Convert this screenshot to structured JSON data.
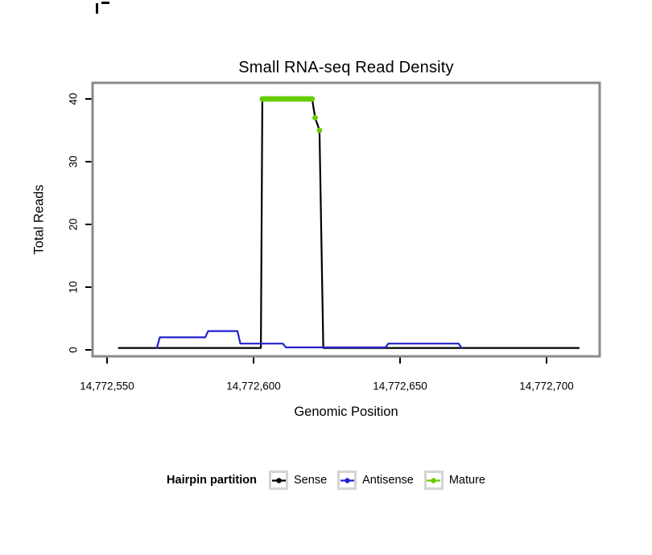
{
  "chart_data": {
    "type": "line",
    "title": "Small RNA-seq Read Density",
    "xlabel": "Genomic Position",
    "ylabel": "Total Reads",
    "xlim": [
      14772545,
      14772718
    ],
    "ylim": [
      0,
      41
    ],
    "grid": false,
    "panel_border_color": "#8a8a8a",
    "x_ticks": [
      {
        "value": 14772550,
        "label": "14,772,550"
      },
      {
        "value": 14772600,
        "label": "14,772,600"
      },
      {
        "value": 14772650,
        "label": "14,772,650"
      },
      {
        "value": 14772700,
        "label": "14,772,700"
      }
    ],
    "y_ticks": [
      {
        "value": 0,
        "label": "0"
      },
      {
        "value": 10,
        "label": "10"
      },
      {
        "value": 20,
        "label": "20"
      },
      {
        "value": 30,
        "label": "30"
      },
      {
        "value": 40,
        "label": "40"
      }
    ],
    "legend": {
      "title": "Hairpin partition",
      "position": "bottom",
      "entries": [
        {
          "label": "Sense",
          "color": "#000000"
        },
        {
          "label": "Antisense",
          "color": "#2222CC"
        },
        {
          "label": "Mature",
          "color": "#66CD00"
        }
      ]
    },
    "series": [
      {
        "name": "Sense",
        "type": "line",
        "color": "#000000",
        "stroke_width": 2.2,
        "points": [
          [
            14772554,
            0.3
          ],
          [
            14772602.5,
            0.3
          ],
          [
            14772603,
            40
          ],
          [
            14772620,
            40
          ],
          [
            14772621,
            37
          ],
          [
            14772622.5,
            35
          ],
          [
            14772623.8,
            0.3
          ],
          [
            14772711,
            0.3
          ]
        ]
      },
      {
        "name": "Antisense",
        "type": "line",
        "color": "#2222CC",
        "stroke_width": 2.2,
        "points": [
          [
            14772567,
            0.3
          ],
          [
            14772568,
            2
          ],
          [
            14772583.5,
            2
          ],
          [
            14772584.5,
            3
          ],
          [
            14772594.5,
            3
          ],
          [
            14772595.5,
            1
          ],
          [
            14772610,
            1
          ],
          [
            14772611,
            0.4
          ],
          [
            14772645,
            0.4
          ],
          [
            14772646,
            1
          ],
          [
            14772670,
            1
          ],
          [
            14772671,
            0.3
          ]
        ]
      },
      {
        "name": "Mature",
        "type": "points",
        "color": "#66CD00",
        "point_radius": 3.4,
        "run_width": 6.5,
        "points": [
          [
            14772603,
            40
          ],
          [
            14772604,
            40
          ],
          [
            14772605,
            40
          ],
          [
            14772606,
            40
          ],
          [
            14772607,
            40
          ],
          [
            14772608,
            40
          ],
          [
            14772609,
            40
          ],
          [
            14772610,
            40
          ],
          [
            14772611,
            40
          ],
          [
            14772612,
            40
          ],
          [
            14772613,
            40
          ],
          [
            14772614,
            40
          ],
          [
            14772615,
            40
          ],
          [
            14772616,
            40
          ],
          [
            14772617,
            40
          ],
          [
            14772618,
            40
          ],
          [
            14772619,
            40
          ],
          [
            14772620,
            40
          ],
          [
            14772621,
            37
          ],
          [
            14772622.5,
            35
          ]
        ]
      }
    ]
  }
}
